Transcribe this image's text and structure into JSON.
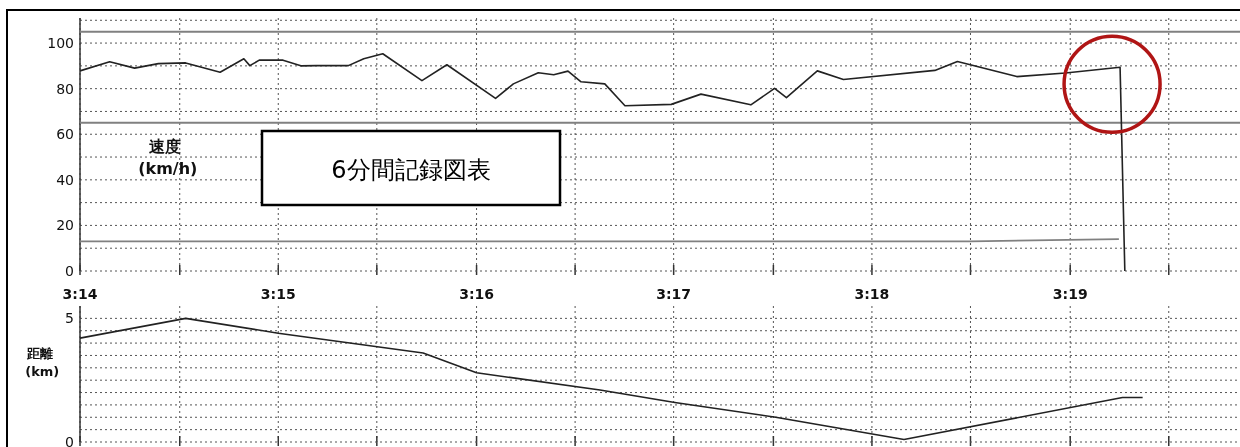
{
  "chart_data": [
    {
      "type": "line",
      "title": "6分間記録図表",
      "ylabel": "速度 (km/h)",
      "grid": true,
      "xlim": [
        3.2333,
        3.331
      ],
      "ylim": [
        0,
        111
      ],
      "xticks": [
        {
          "value": 3.2333,
          "label": "3:14"
        },
        {
          "value": 3.2417,
          "label": null
        },
        {
          "value": 3.25,
          "label": "3:15"
        },
        {
          "value": 3.2583,
          "label": null
        },
        {
          "value": 3.2667,
          "label": "3:16"
        },
        {
          "value": 3.275,
          "label": null
        },
        {
          "value": 3.2833,
          "label": "3:17"
        },
        {
          "value": 3.2917,
          "label": null
        },
        {
          "value": 3.3,
          "label": "3:18"
        },
        {
          "value": 3.3083,
          "label": null
        },
        {
          "value": 3.3167,
          "label": "3:19"
        },
        {
          "value": 3.325,
          "label": null
        }
      ],
      "yticks": [
        0,
        {
          "value": 10,
          "label": null
        },
        20,
        {
          "value": 30,
          "label": null
        },
        40,
        {
          "value": 50,
          "label": null
        },
        60,
        {
          "value": 70,
          "label": null
        },
        80,
        {
          "value": 90,
          "label": null
        },
        100,
        {
          "value": 110,
          "label": null
        }
      ],
      "ref_lines": [
        {
          "axis": "y",
          "value": 105,
          "color": "#808080"
        },
        {
          "axis": "y",
          "value": 65,
          "color": "#808080"
        }
      ],
      "series": [
        {
          "color": "#222222",
          "x": [
            3.2333,
            3.2358,
            3.2379,
            3.2399,
            3.2422,
            3.2451,
            3.2471,
            3.2476,
            3.2484,
            3.2504,
            3.2519,
            3.2532,
            3.2559,
            3.2572,
            3.2588,
            3.2621,
            3.2642,
            3.2683,
            3.2698,
            3.2719,
            3.2732,
            3.2744,
            3.2755,
            3.2775,
            3.2792,
            3.2831,
            3.2856,
            3.2898,
            3.2918,
            3.2928,
            3.2954,
            3.2976,
            3.3053,
            3.3072,
            3.3122,
            3.3163,
            3.3209,
            3.3213
          ],
          "values": [
            87.8,
            91.8,
            89.0,
            91.0,
            91.3,
            87.2,
            93.1,
            90.1,
            92.5,
            92.5,
            90.0,
            90.1,
            90.1,
            93.1,
            95.3,
            83.5,
            90.5,
            75.7,
            82.1,
            87.0,
            86.1,
            87.7,
            83.0,
            82.1,
            72.5,
            73.1,
            77.6,
            72.9,
            80.1,
            76.1,
            87.8,
            84.0,
            88.0,
            91.9,
            85.3,
            86.9,
            89.4,
            0
          ]
        },
        {
          "color": "#808080",
          "x": [
            3.2333,
            3.3083,
            3.3208
          ],
          "values": [
            13,
            13,
            14
          ]
        }
      ]
    },
    {
      "type": "line",
      "ylabel": "距離 (km)",
      "grid": true,
      "tick_labels": "y",
      "xlim": [
        3.2333,
        3.331
      ],
      "ylim": [
        0,
        5.5
      ],
      "xticks": [
        {
          "value": 3.2333,
          "label": null
        },
        {
          "value": 3.2417,
          "label": null
        },
        {
          "value": 3.25,
          "label": null
        },
        {
          "value": 3.2583,
          "label": null
        },
        {
          "value": 3.2667,
          "label": null
        },
        {
          "value": 3.275,
          "label": null
        },
        {
          "value": 3.2833,
          "label": null
        },
        {
          "value": 3.2917,
          "label": null
        },
        {
          "value": 3.3,
          "label": null
        },
        {
          "value": 3.3083,
          "label": null
        },
        {
          "value": 3.3167,
          "label": null
        },
        {
          "value": 3.325,
          "label": null
        }
      ],
      "yticks": [
        0,
        {
          "value": 0.5,
          "label": null
        },
        {
          "value": 1,
          "label": null
        },
        {
          "value": 1.5,
          "label": null
        },
        {
          "value": 2,
          "label": null
        },
        {
          "value": 2.5,
          "label": null
        },
        {
          "value": 3,
          "label": null
        },
        {
          "value": 3.5,
          "label": null
        },
        {
          "value": 4,
          "label": null
        },
        {
          "value": 4.5,
          "label": null
        },
        5
      ],
      "series": [
        {
          "color": "#222222",
          "x": [
            3.2333,
            3.2422,
            3.25,
            3.2622,
            3.2667,
            3.2771,
            3.2834,
            3.2919,
            3.3027,
            3.3211,
            3.3228
          ],
          "values": [
            4.2,
            5.0,
            4.4,
            3.6,
            2.8,
            2.1,
            1.6,
            1.0,
            0.1,
            1.8,
            1.8
          ]
        }
      ]
    }
  ]
}
